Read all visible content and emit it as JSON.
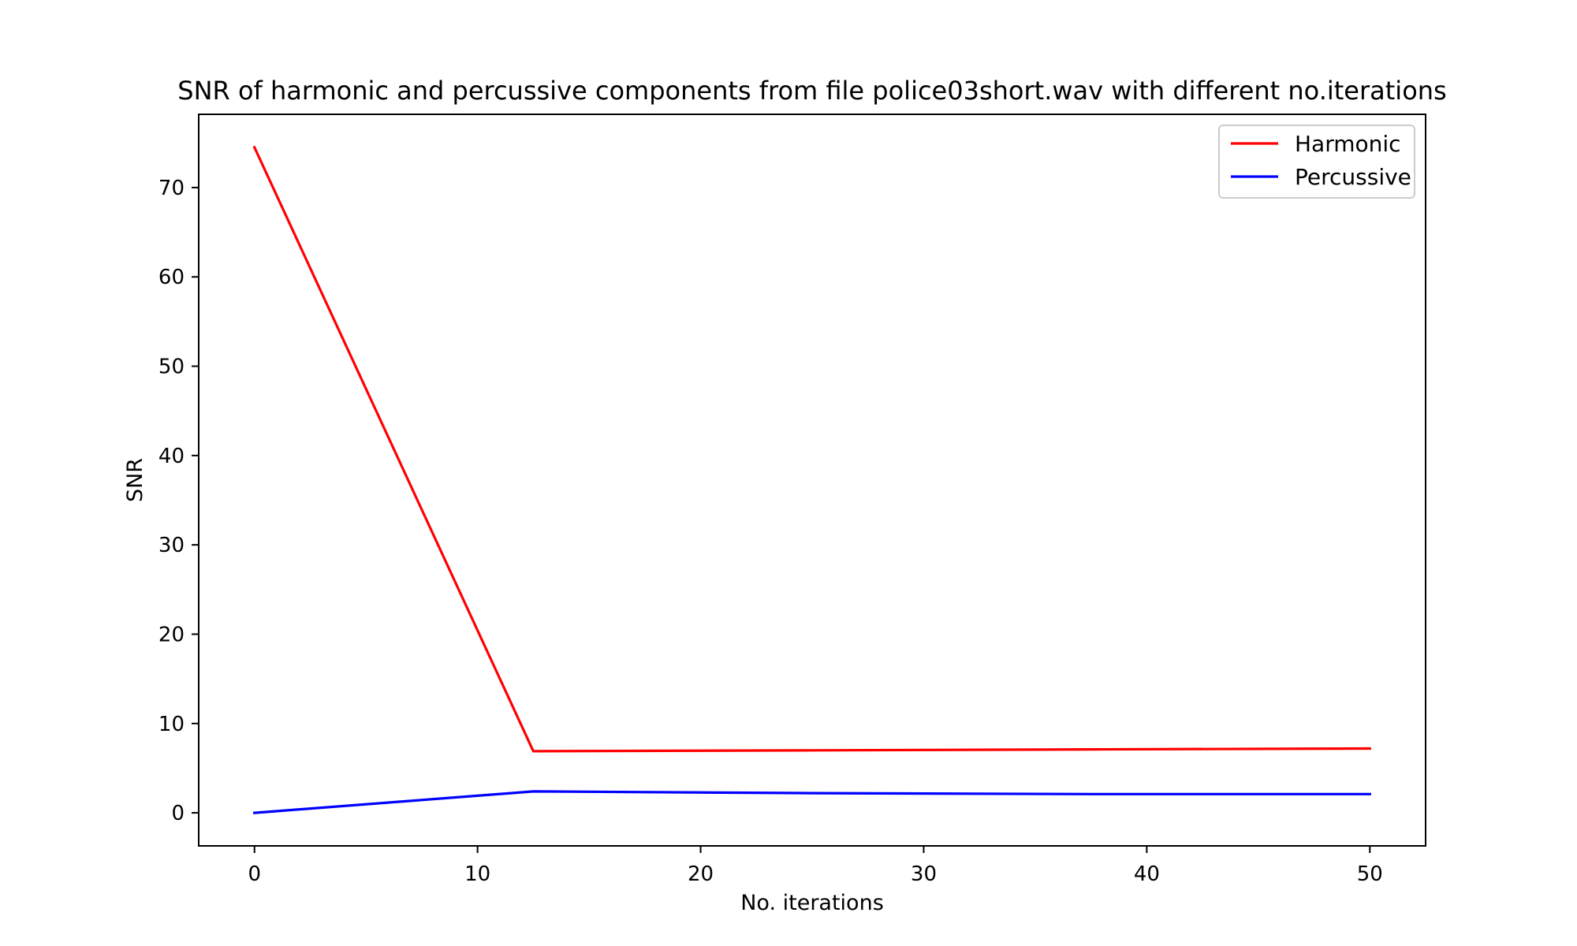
{
  "chart_data": {
    "type": "line",
    "title": "SNR of harmonic and percussive components from file police03short.wav with different no.iterations",
    "xlabel": "No. iterations",
    "ylabel": "SNR",
    "xlim": [
      -2.5,
      52.5
    ],
    "ylim": [
      -3.7,
      78.2
    ],
    "xticks": [
      0,
      10,
      20,
      30,
      40,
      50
    ],
    "yticks": [
      0,
      10,
      20,
      30,
      40,
      50,
      60,
      70
    ],
    "grid": false,
    "legend_position": "top-right",
    "series": [
      {
        "name": "Harmonic",
        "color": "#ff0000",
        "x": [
          0,
          12.5,
          25,
          37.5,
          50
        ],
        "y": [
          74.5,
          6.9,
          7.0,
          7.1,
          7.2
        ]
      },
      {
        "name": "Percussive",
        "color": "#0000ff",
        "x": [
          0,
          12.5,
          25,
          37.5,
          50
        ],
        "y": [
          0.0,
          2.4,
          2.2,
          2.1,
          2.1
        ]
      }
    ]
  }
}
